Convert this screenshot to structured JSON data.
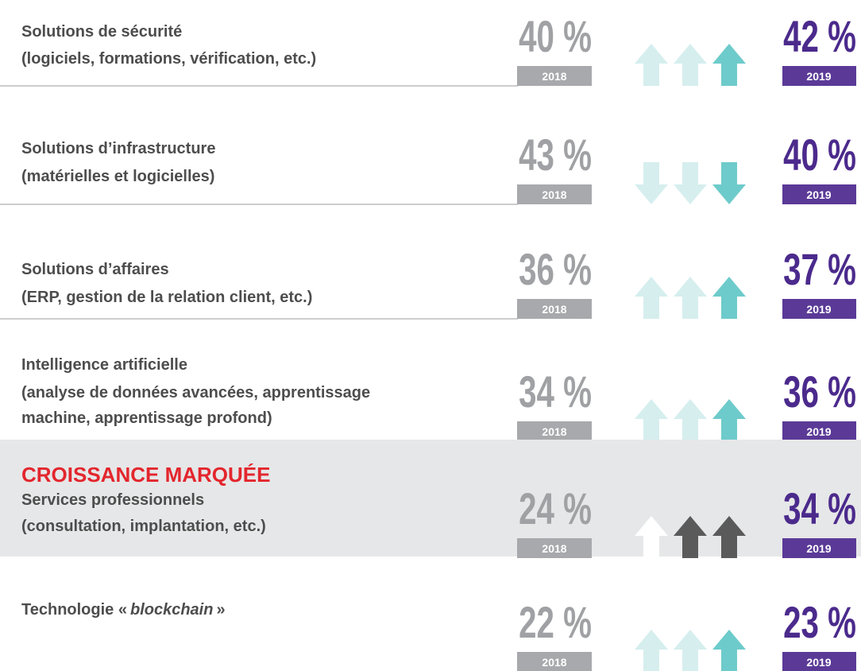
{
  "rows": [
    {
      "label": [
        "Solutions de sécurité",
        "(logiciels, formations, vérification, etc.)"
      ],
      "value_2018": "40 %",
      "year_2018": "2018",
      "value_2019": "42 %",
      "year_2019": "2019",
      "arrow": "up"
    },
    {
      "label": [
        "Solutions d’infrastructure",
        "(matérielles et logicielles)"
      ],
      "value_2018": "43 %",
      "year_2018": "2018",
      "value_2019": "40 %",
      "year_2019": "2019",
      "arrow": "down"
    },
    {
      "label": [
        "Solutions d’affaires",
        "(ERP, gestion de la relation client, etc.)"
      ],
      "value_2018": "36 %",
      "year_2018": "2018",
      "value_2019": "37 %",
      "year_2019": "2019",
      "arrow": "up"
    },
    {
      "label": [
        "Intelligence artificielle",
        "(analyse de données avancées, apprentissage",
        "machine, apprentissage profond)"
      ],
      "value_2018": "34 %",
      "year_2018": "2018",
      "value_2019": "36 %",
      "year_2019": "2019",
      "arrow": "up"
    },
    {
      "heading": "CROISSANCE MARQUÉE",
      "label": [
        "Services professionnels",
        "(consultation, implantation, etc.)"
      ],
      "value_2018": "24 %",
      "year_2018": "2018",
      "value_2019": "34 %",
      "year_2019": "2019",
      "arrow": "up",
      "highlight": true
    },
    {
      "label_parts": {
        "prefix": "Technologie «",
        "italic": "blockchain",
        "suffix": "»"
      },
      "value_2018": "22 %",
      "year_2018": "2018",
      "value_2019": "23 %",
      "year_2019": "2019",
      "arrow": "up"
    }
  ]
}
